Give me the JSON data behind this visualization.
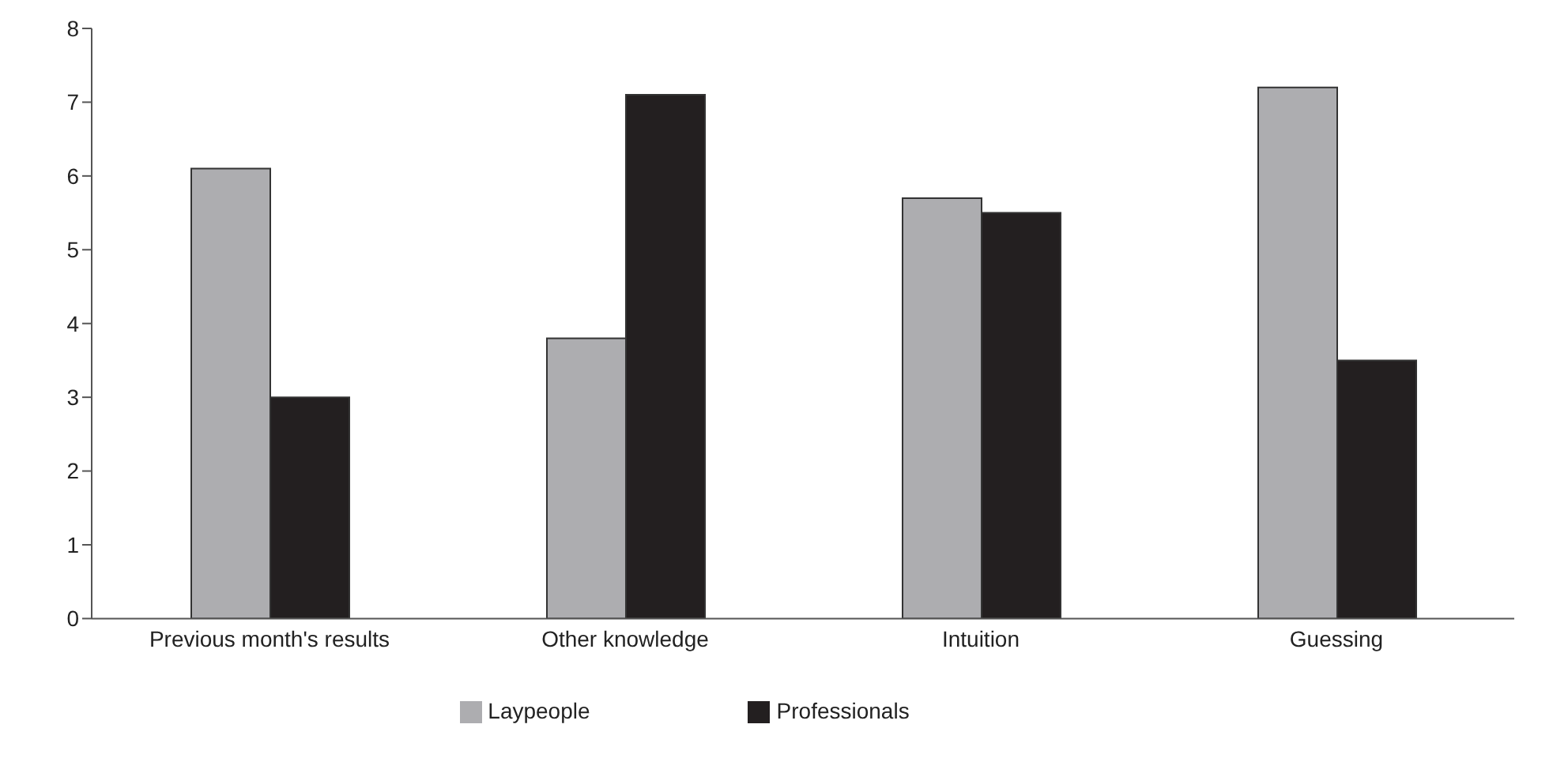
{
  "chart_data": {
    "type": "bar",
    "categories": [
      "Previous month's results",
      "Other knowledge",
      "Intuition",
      "Guessing"
    ],
    "series": [
      {
        "name": "Laypeople",
        "color": "#adadb0",
        "values": [
          6.1,
          3.8,
          5.7,
          7.2
        ]
      },
      {
        "name": "Professionals",
        "color": "#231f20",
        "values": [
          3.0,
          7.1,
          5.5,
          3.5
        ]
      }
    ],
    "ylim": [
      0,
      8
    ],
    "yticks": [
      0,
      1,
      2,
      3,
      4,
      5,
      6,
      7,
      8
    ],
    "grid": false,
    "legend": "bottom"
  }
}
